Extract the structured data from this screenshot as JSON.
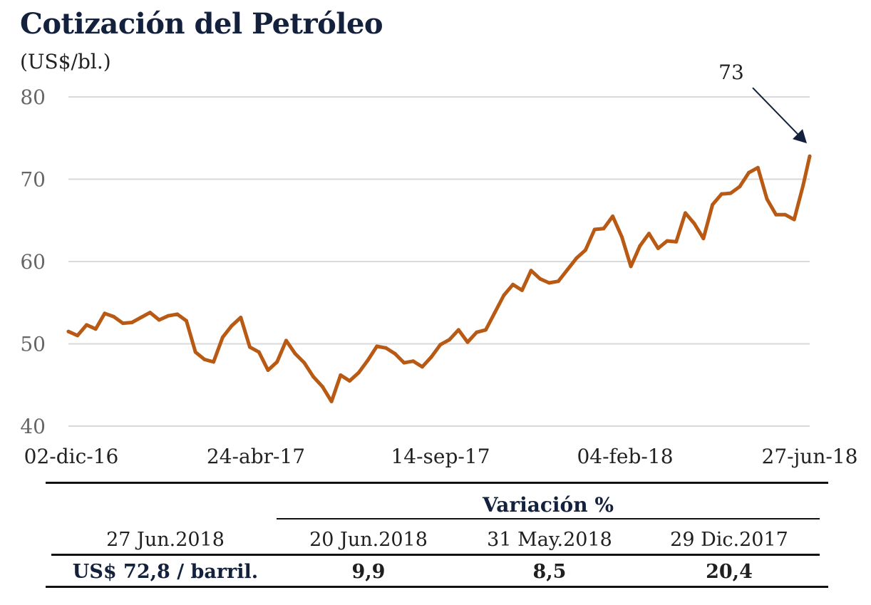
{
  "header": {
    "title": "Cotización del Petróleo",
    "subtitle": "(US$/bl.)"
  },
  "colors": {
    "line": "#b85a14",
    "title": "#14213d",
    "grid": "#d9d9d9",
    "axis_text": "#666666",
    "arrow": "#14213d"
  },
  "chart_data": {
    "type": "line",
    "title": "Cotización del Petróleo",
    "ylabel": "(US$/bl.)",
    "xlabel": "",
    "ylim": [
      40,
      80
    ],
    "yticks": [
      40,
      50,
      60,
      70,
      80
    ],
    "xtick_labels": [
      "02-dic-16",
      "24-abr-17",
      "14-sep-17",
      "04-feb-18",
      "27-jun-18"
    ],
    "grid": true,
    "annotation": {
      "text": "73",
      "value": 73
    },
    "series": [
      {
        "x": [
          "2016-12-02",
          "2016-12-09",
          "2016-12-16",
          "2016-12-23",
          "2016-12-30",
          "2017-01-06",
          "2017-01-13",
          "2017-01-20",
          "2017-01-27",
          "2017-02-03",
          "2017-02-10",
          "2017-02-17",
          "2017-02-24",
          "2017-03-03",
          "2017-03-10",
          "2017-03-17",
          "2017-03-24",
          "2017-03-31",
          "2017-04-07",
          "2017-04-14",
          "2017-04-21",
          "2017-04-28",
          "2017-05-05",
          "2017-05-12",
          "2017-05-19",
          "2017-05-26",
          "2017-06-02",
          "2017-06-09",
          "2017-06-16",
          "2017-06-23",
          "2017-06-30",
          "2017-07-07",
          "2017-07-14",
          "2017-07-21",
          "2017-07-28",
          "2017-08-04",
          "2017-08-11",
          "2017-08-18",
          "2017-08-25",
          "2017-09-01",
          "2017-09-08",
          "2017-09-15",
          "2017-09-22",
          "2017-09-29",
          "2017-10-06",
          "2017-10-13",
          "2017-10-20",
          "2017-10-27",
          "2017-11-03",
          "2017-11-10",
          "2017-11-17",
          "2017-11-24",
          "2017-12-01",
          "2017-12-08",
          "2017-12-15",
          "2017-12-22",
          "2017-12-29",
          "2018-01-05",
          "2018-01-12",
          "2018-01-19",
          "2018-01-26",
          "2018-02-02",
          "2018-02-09",
          "2018-02-16",
          "2018-02-23",
          "2018-03-02",
          "2018-03-09",
          "2018-03-16",
          "2018-03-23",
          "2018-03-30",
          "2018-04-06",
          "2018-04-13",
          "2018-04-20",
          "2018-04-27",
          "2018-05-04",
          "2018-05-11",
          "2018-05-18",
          "2018-05-25",
          "2018-06-01",
          "2018-06-08",
          "2018-06-15",
          "2018-06-22",
          "2018-06-27"
        ],
        "values": [
          51.5,
          51,
          52.3,
          51.8,
          53.7,
          53.3,
          52.5,
          52.6,
          53.2,
          53.8,
          52.9,
          53.4,
          53.6,
          52.8,
          49.0,
          48.1,
          47.8,
          50.8,
          52.2,
          53.2,
          49.6,
          49.0,
          46.8,
          47.8,
          50.4,
          48.8,
          47.7,
          46.0,
          44.8,
          43.0,
          46.2,
          45.5,
          46.5,
          48.0,
          49.7,
          49.5,
          48.8,
          47.7,
          47.9,
          47.2,
          48.4,
          49.9,
          50.5,
          51.7,
          50.2,
          51.4,
          51.7,
          53.8,
          55.9,
          57.2,
          56.5,
          58.9,
          57.9,
          57.4,
          57.6,
          59.0,
          60.4,
          61.4,
          63.9,
          64.0,
          65.5,
          63.0,
          59.4,
          61.9,
          63.4,
          61.6,
          62.5,
          62.4,
          65.9,
          64.6,
          62.8,
          66.9,
          68.2,
          68.3,
          69.1,
          70.8,
          71.4,
          67.6,
          65.7,
          65.7,
          65.1,
          69.3,
          72.8
        ]
      }
    ]
  },
  "table": {
    "group_header": "Variación %",
    "columns": [
      "27 Jun.2018",
      "20 Jun.2018",
      "31 May.2018",
      "29 Dic.2017"
    ],
    "row": [
      "US$ 72,8 / barril.",
      "9,9",
      "8,5",
      "20,4"
    ]
  }
}
